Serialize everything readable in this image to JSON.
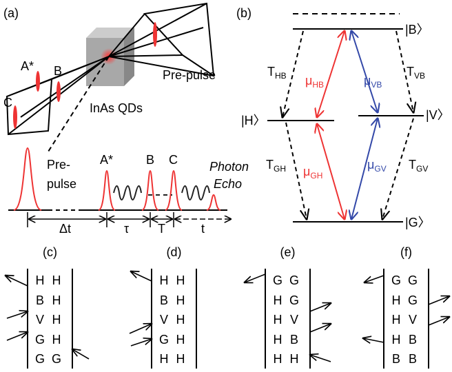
{
  "panel_a": {
    "label": "(a)",
    "pulse_labels": [
      "A*",
      "B",
      "C"
    ],
    "prepulse": "Pre-pulse",
    "sample": "InAs QDs",
    "sequence": {
      "prepulse": [
        "Pre-",
        "pulse"
      ],
      "pulses": [
        "A*",
        "B",
        "C"
      ],
      "echo": [
        "Photon",
        "Echo"
      ],
      "delays": [
        "Δt",
        "τ",
        "T",
        "t"
      ]
    }
  },
  "panel_b": {
    "label": "(b)",
    "levels": {
      "B": "|B〉",
      "H": "|H〉",
      "V": "|V〉",
      "G": "|G〉"
    },
    "transitions": [
      {
        "main": "T",
        "sub": "HB"
      },
      {
        "main": "μ",
        "sub": "HB"
      },
      {
        "main": "μ",
        "sub": "VB"
      },
      {
        "main": "T",
        "sub": "VB"
      },
      {
        "main": "T",
        "sub": "GH"
      },
      {
        "main": "μ",
        "sub": "GH"
      },
      {
        "main": "μ",
        "sub": "GV"
      },
      {
        "main": "T",
        "sub": "GV"
      }
    ]
  },
  "ladders": [
    {
      "label": "(c)",
      "rows": [
        [
          "H",
          "H"
        ],
        [
          "B",
          "H"
        ],
        [
          "V",
          "H"
        ],
        [
          "G",
          "H"
        ],
        [
          "G",
          "G"
        ]
      ]
    },
    {
      "label": "(d)",
      "rows": [
        [
          "H",
          "H"
        ],
        [
          "B",
          "H"
        ],
        [
          "V",
          "H"
        ],
        [
          "G",
          "H"
        ],
        [
          "H",
          "H"
        ]
      ]
    },
    {
      "label": "(e)",
      "rows": [
        [
          "G",
          "G"
        ],
        [
          "H",
          "G"
        ],
        [
          "H",
          "V"
        ],
        [
          "H",
          "B"
        ],
        [
          "H",
          "H"
        ]
      ]
    },
    {
      "label": "(f)",
      "rows": [
        [
          "G",
          "G"
        ],
        [
          "H",
          "G"
        ],
        [
          "H",
          "V"
        ],
        [
          "H",
          "B"
        ],
        [
          "B",
          "B"
        ]
      ]
    }
  ]
}
